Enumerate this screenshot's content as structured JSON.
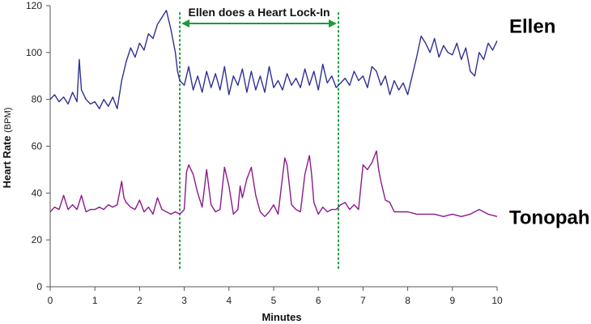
{
  "chart_data": {
    "type": "line",
    "xlabel": "Minutes",
    "ylabel": "Heart Rate",
    "ylabel_unit": "(BPM)",
    "xlim": [
      0,
      10
    ],
    "ylim": [
      0,
      120
    ],
    "xticks": [
      "0",
      "1",
      "2",
      "3",
      "4",
      "5",
      "6",
      "7",
      "8",
      "9",
      "10"
    ],
    "yticks": [
      "0",
      "20",
      "40",
      "60",
      "80",
      "100",
      "120"
    ],
    "grid": false,
    "annotation": {
      "text": "Ellen does a Heart Lock-In",
      "x_start": 2.9,
      "x_end": 6.45,
      "color": "#1e9a3c"
    },
    "series": [
      {
        "name": "Ellen",
        "color": "#2e3192",
        "x": [
          0,
          0.1,
          0.2,
          0.3,
          0.4,
          0.5,
          0.6,
          0.65,
          0.7,
          0.8,
          0.9,
          1.0,
          1.1,
          1.2,
          1.3,
          1.4,
          1.5,
          1.6,
          1.7,
          1.8,
          1.9,
          2.0,
          2.1,
          2.2,
          2.3,
          2.4,
          2.5,
          2.6,
          2.7,
          2.8,
          2.85,
          2.9,
          3.0,
          3.1,
          3.2,
          3.3,
          3.4,
          3.5,
          3.6,
          3.7,
          3.8,
          3.9,
          4.0,
          4.1,
          4.2,
          4.3,
          4.4,
          4.5,
          4.6,
          4.7,
          4.8,
          4.9,
          5.0,
          5.1,
          5.2,
          5.3,
          5.4,
          5.5,
          5.6,
          5.7,
          5.8,
          5.9,
          6.0,
          6.1,
          6.2,
          6.3,
          6.4,
          6.5,
          6.6,
          6.7,
          6.8,
          6.9,
          7.0,
          7.1,
          7.2,
          7.3,
          7.4,
          7.5,
          7.6,
          7.7,
          7.8,
          7.9,
          8.0,
          8.1,
          8.2,
          8.3,
          8.4,
          8.5,
          8.6,
          8.7,
          8.8,
          8.9,
          9.0,
          9.1,
          9.2,
          9.3,
          9.4,
          9.5,
          9.6,
          9.7,
          9.8,
          9.9,
          10.0
        ],
        "values": [
          80,
          82,
          79,
          81,
          78,
          83,
          79,
          97,
          84,
          80,
          78,
          79,
          76,
          80,
          77,
          81,
          76,
          88,
          96,
          102,
          98,
          104,
          101,
          108,
          106,
          112,
          115,
          118,
          110,
          100,
          92,
          88,
          86,
          94,
          84,
          90,
          83,
          92,
          85,
          91,
          84,
          94,
          82,
          90,
          86,
          93,
          83,
          92,
          84,
          90,
          83,
          94,
          85,
          88,
          84,
          91,
          86,
          89,
          85,
          93,
          86,
          92,
          84,
          95,
          87,
          90,
          85,
          87,
          89,
          86,
          92,
          88,
          90,
          85,
          94,
          92,
          86,
          90,
          82,
          88,
          84,
          87,
          82,
          90,
          98,
          107,
          104,
          100,
          106,
          98,
          103,
          100,
          99,
          104,
          97,
          102,
          92,
          90,
          100,
          97,
          104,
          101,
          105
        ]
      },
      {
        "name": "Tonopah",
        "color": "#8b1a8b",
        "x": [
          0,
          0.1,
          0.2,
          0.3,
          0.4,
          0.5,
          0.6,
          0.7,
          0.8,
          0.9,
          1.0,
          1.1,
          1.2,
          1.3,
          1.4,
          1.5,
          1.6,
          1.65,
          1.7,
          1.8,
          1.9,
          2.0,
          2.1,
          2.2,
          2.3,
          2.4,
          2.5,
          2.6,
          2.7,
          2.8,
          2.9,
          3.0,
          3.05,
          3.1,
          3.2,
          3.3,
          3.4,
          3.5,
          3.6,
          3.7,
          3.8,
          3.9,
          4.0,
          4.1,
          4.2,
          4.25,
          4.3,
          4.4,
          4.5,
          4.6,
          4.7,
          4.8,
          4.9,
          5.0,
          5.1,
          5.2,
          5.25,
          5.3,
          5.4,
          5.5,
          5.6,
          5.7,
          5.8,
          5.85,
          5.9,
          6.0,
          6.1,
          6.2,
          6.3,
          6.4,
          6.5,
          6.6,
          6.7,
          6.8,
          6.9,
          7.0,
          7.1,
          7.2,
          7.3,
          7.35,
          7.4,
          7.5,
          7.6,
          7.7,
          7.8,
          7.9,
          8.0,
          8.2,
          8.4,
          8.6,
          8.8,
          9.0,
          9.2,
          9.4,
          9.6,
          9.8,
          10.0
        ],
        "values": [
          32,
          34,
          33,
          39,
          33,
          35,
          33,
          39,
          32,
          33,
          33,
          34,
          33,
          35,
          34,
          35,
          45,
          38,
          36,
          34,
          33,
          37,
          32,
          34,
          31,
          38,
          33,
          32,
          31,
          32,
          31,
          33,
          49,
          52,
          48,
          40,
          34,
          50,
          35,
          32,
          33,
          51,
          43,
          31,
          33,
          43,
          38,
          46,
          51,
          39,
          32,
          30,
          32,
          35,
          31,
          47,
          55,
          52,
          35,
          33,
          32,
          48,
          56,
          48,
          36,
          31,
          34,
          32,
          33,
          33,
          35,
          36,
          33,
          35,
          33,
          52,
          50,
          53,
          58,
          50,
          45,
          37,
          36,
          32,
          32,
          32,
          32,
          31,
          31,
          31,
          30,
          31,
          30,
          31,
          33,
          31,
          30
        ]
      }
    ]
  }
}
